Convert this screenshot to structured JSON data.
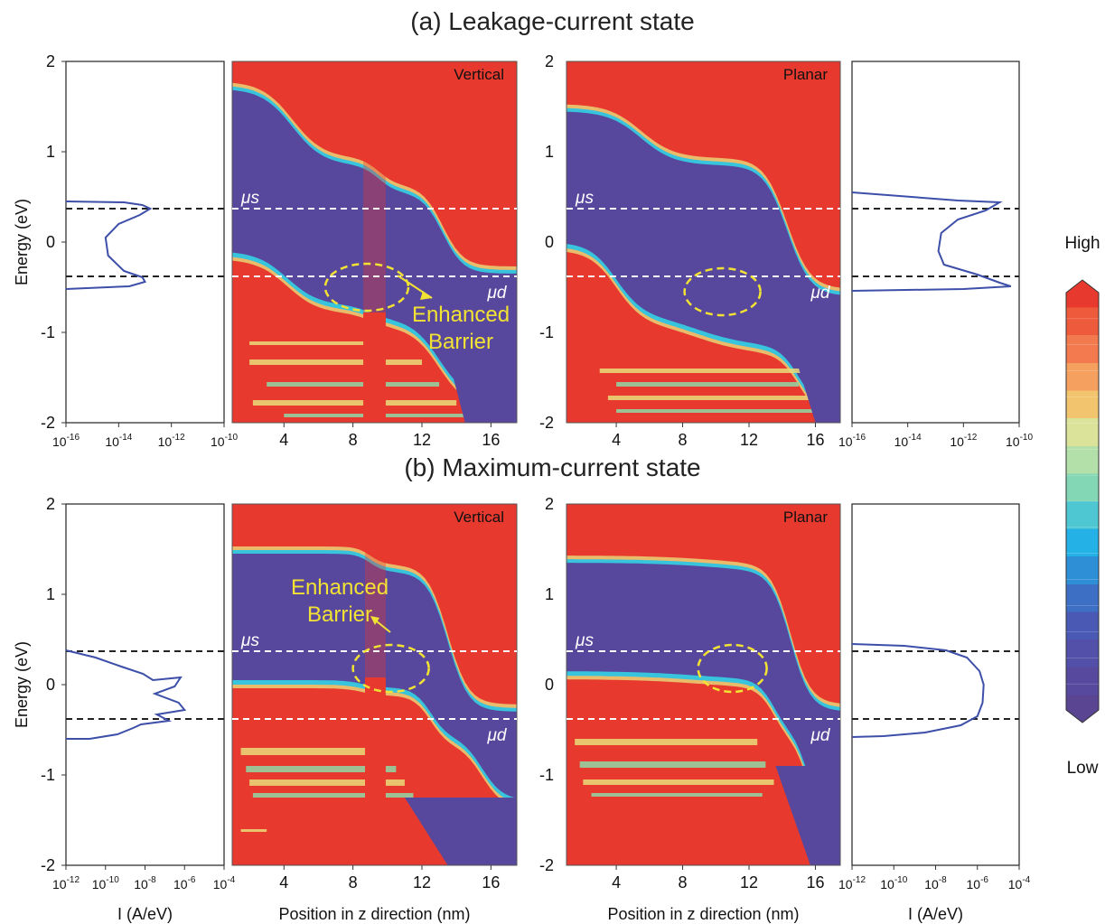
{
  "titles": {
    "a": "(a) Leakage-current state",
    "b": "(b) Maximum-current state"
  },
  "colorbar": {
    "high_label": "High",
    "low_label": "Low",
    "colors": [
      "#e8392e",
      "#ee5a3c",
      "#f27a4e",
      "#f5a05e",
      "#f3c46e",
      "#dbe39a",
      "#b2e0a8",
      "#83d7b4",
      "#4fc7d2",
      "#24b2e6",
      "#2f8fd6",
      "#3d6fc4",
      "#4a59b4",
      "#5250a8",
      "#56499e",
      "#5a4593"
    ]
  },
  "chart_data": [
    {
      "id": "a-left-current",
      "type": "line",
      "xscale": "log",
      "xlim_exp": [
        -16,
        -10
      ],
      "x_ticks": [
        "-16",
        "-14",
        "-12",
        "-10"
      ],
      "ylim": [
        -2,
        2
      ],
      "y_ticks": [
        "2",
        "1",
        "0",
        "-1",
        "-2"
      ],
      "ylabel": "Energy (eV)",
      "xlabel": "",
      "dashed_levels": [
        0.37,
        -0.38
      ],
      "series": [
        {
          "color": "#3d4fa8",
          "points": [
            [
              -16,
              0.45
            ],
            [
              -13.8,
              0.44
            ],
            [
              -13.1,
              0.41
            ],
            [
              -12.8,
              0.37
            ],
            [
              -13.2,
              0.3
            ],
            [
              -14.0,
              0.2
            ],
            [
              -14.5,
              0.05
            ],
            [
              -14.4,
              -0.15
            ],
            [
              -13.8,
              -0.32
            ],
            [
              -13.1,
              -0.39
            ],
            [
              -13.0,
              -0.44
            ],
            [
              -13.6,
              -0.49
            ],
            [
              -16,
              -0.52
            ]
          ]
        }
      ]
    },
    {
      "id": "a-vertical-map",
      "type": "heatmap",
      "label": "Vertical",
      "x_range": [
        1,
        17.5
      ],
      "x_ticks": [
        "4",
        "8",
        "12",
        "16"
      ],
      "y_range": [
        -2,
        2
      ],
      "mu_s_energy": 0.37,
      "mu_d_energy": -0.38,
      "mu_s_label": "μs",
      "mu_d_label": "μd",
      "annotation": "Enhanced Barrier",
      "annotation_lines": [
        "Enhanced",
        "Barrier"
      ]
    },
    {
      "id": "a-planar-map",
      "type": "heatmap",
      "label": "Planar",
      "x_range": [
        1,
        17.5
      ],
      "x_ticks": [
        "4",
        "8",
        "12",
        "16"
      ],
      "y_range": [
        -2,
        2
      ],
      "y_ticks": [
        "2",
        "1",
        "0",
        "-1",
        "-2"
      ],
      "mu_s_energy": 0.37,
      "mu_d_energy": -0.38,
      "mu_s_label": "μs",
      "mu_d_label": "μd"
    },
    {
      "id": "a-right-current",
      "type": "line",
      "xscale": "log",
      "xlim_exp": [
        -16,
        -10
      ],
      "x_ticks": [
        "-16",
        "-14",
        "-12",
        "-10"
      ],
      "ylim": [
        -2,
        2
      ],
      "dashed_levels": [
        0.37,
        -0.38
      ],
      "series": [
        {
          "color": "#3d4fa8",
          "points": [
            [
              -16,
              0.55
            ],
            [
              -12.2,
              0.46
            ],
            [
              -10.7,
              0.44
            ],
            [
              -11.2,
              0.35
            ],
            [
              -12.2,
              0.25
            ],
            [
              -12.8,
              0.1
            ],
            [
              -12.9,
              -0.1
            ],
            [
              -12.7,
              -0.25
            ],
            [
              -11.5,
              -0.36
            ],
            [
              -10.7,
              -0.45
            ],
            [
              -10.3,
              -0.49
            ],
            [
              -12,
              -0.52
            ],
            [
              -16,
              -0.54
            ]
          ]
        }
      ]
    },
    {
      "id": "b-left-current",
      "type": "line",
      "xscale": "log",
      "xlim_exp": [
        -12,
        -4
      ],
      "x_ticks": [
        "-12",
        "-10",
        "-8",
        "-6",
        "-4"
      ],
      "ylim": [
        -2,
        2
      ],
      "y_ticks": [
        "2",
        "1",
        "0",
        "-1",
        "-2"
      ],
      "ylabel": "Energy (eV)",
      "xlabel": "I (A/eV)",
      "dashed_levels": [
        0.37,
        -0.38
      ],
      "series": [
        {
          "color": "#3d4fa8",
          "points": [
            [
              -12,
              0.38
            ],
            [
              -10.5,
              0.3
            ],
            [
              -9.2,
              0.2
            ],
            [
              -8.1,
              0.12
            ],
            [
              -7.6,
              0.05
            ],
            [
              -6.2,
              0.08
            ],
            [
              -6.5,
              -0.02
            ],
            [
              -7.5,
              -0.1
            ],
            [
              -6.3,
              -0.2
            ],
            [
              -6.0,
              -0.28
            ],
            [
              -7.4,
              -0.33
            ],
            [
              -6.8,
              -0.4
            ],
            [
              -8.2,
              -0.44
            ],
            [
              -8.6,
              -0.48
            ],
            [
              -9.4,
              -0.55
            ],
            [
              -10.8,
              -0.6
            ],
            [
              -12,
              -0.6
            ]
          ]
        }
      ]
    },
    {
      "id": "b-vertical-map",
      "type": "heatmap",
      "label": "Vertical",
      "x_range": [
        1,
        17.5
      ],
      "x_ticks": [
        "4",
        "8",
        "12",
        "16"
      ],
      "xlabel": "Position in z direction (nm)",
      "y_range": [
        -2,
        2
      ],
      "mu_s_energy": 0.37,
      "mu_d_energy": -0.38,
      "mu_s_label": "μs",
      "mu_d_label": "μd",
      "annotation": "Enhanced Barrier",
      "annotation_lines": [
        "Enhanced",
        "Barrier"
      ]
    },
    {
      "id": "b-planar-map",
      "type": "heatmap",
      "label": "Planar",
      "x_range": [
        1,
        17.5
      ],
      "x_ticks": [
        "4",
        "8",
        "12",
        "16"
      ],
      "xlabel": "Position in z direction (nm)",
      "y_range": [
        -2,
        2
      ],
      "y_ticks": [
        "2",
        "1",
        "0",
        "-1",
        "-2"
      ],
      "mu_s_energy": 0.37,
      "mu_d_energy": -0.38,
      "mu_s_label": "μs",
      "mu_d_label": "μd"
    },
    {
      "id": "b-right-current",
      "type": "line",
      "xscale": "log",
      "xlim_exp": [
        -12,
        -4
      ],
      "x_ticks": [
        "-12",
        "-10",
        "-8",
        "-6",
        "-4"
      ],
      "xlabel": "I (A/eV)",
      "ylim": [
        -2,
        2
      ],
      "dashed_levels": [
        0.37,
        -0.38
      ],
      "series": [
        {
          "color": "#3d4fa8",
          "points": [
            [
              -12,
              0.45
            ],
            [
              -9.5,
              0.43
            ],
            [
              -7.5,
              0.38
            ],
            [
              -6.5,
              0.3
            ],
            [
              -5.9,
              0.15
            ],
            [
              -5.7,
              0.0
            ],
            [
              -5.75,
              -0.2
            ],
            [
              -6.0,
              -0.35
            ],
            [
              -6.8,
              -0.45
            ],
            [
              -8.5,
              -0.53
            ],
            [
              -10.5,
              -0.57
            ],
            [
              -12,
              -0.58
            ]
          ]
        }
      ]
    }
  ]
}
